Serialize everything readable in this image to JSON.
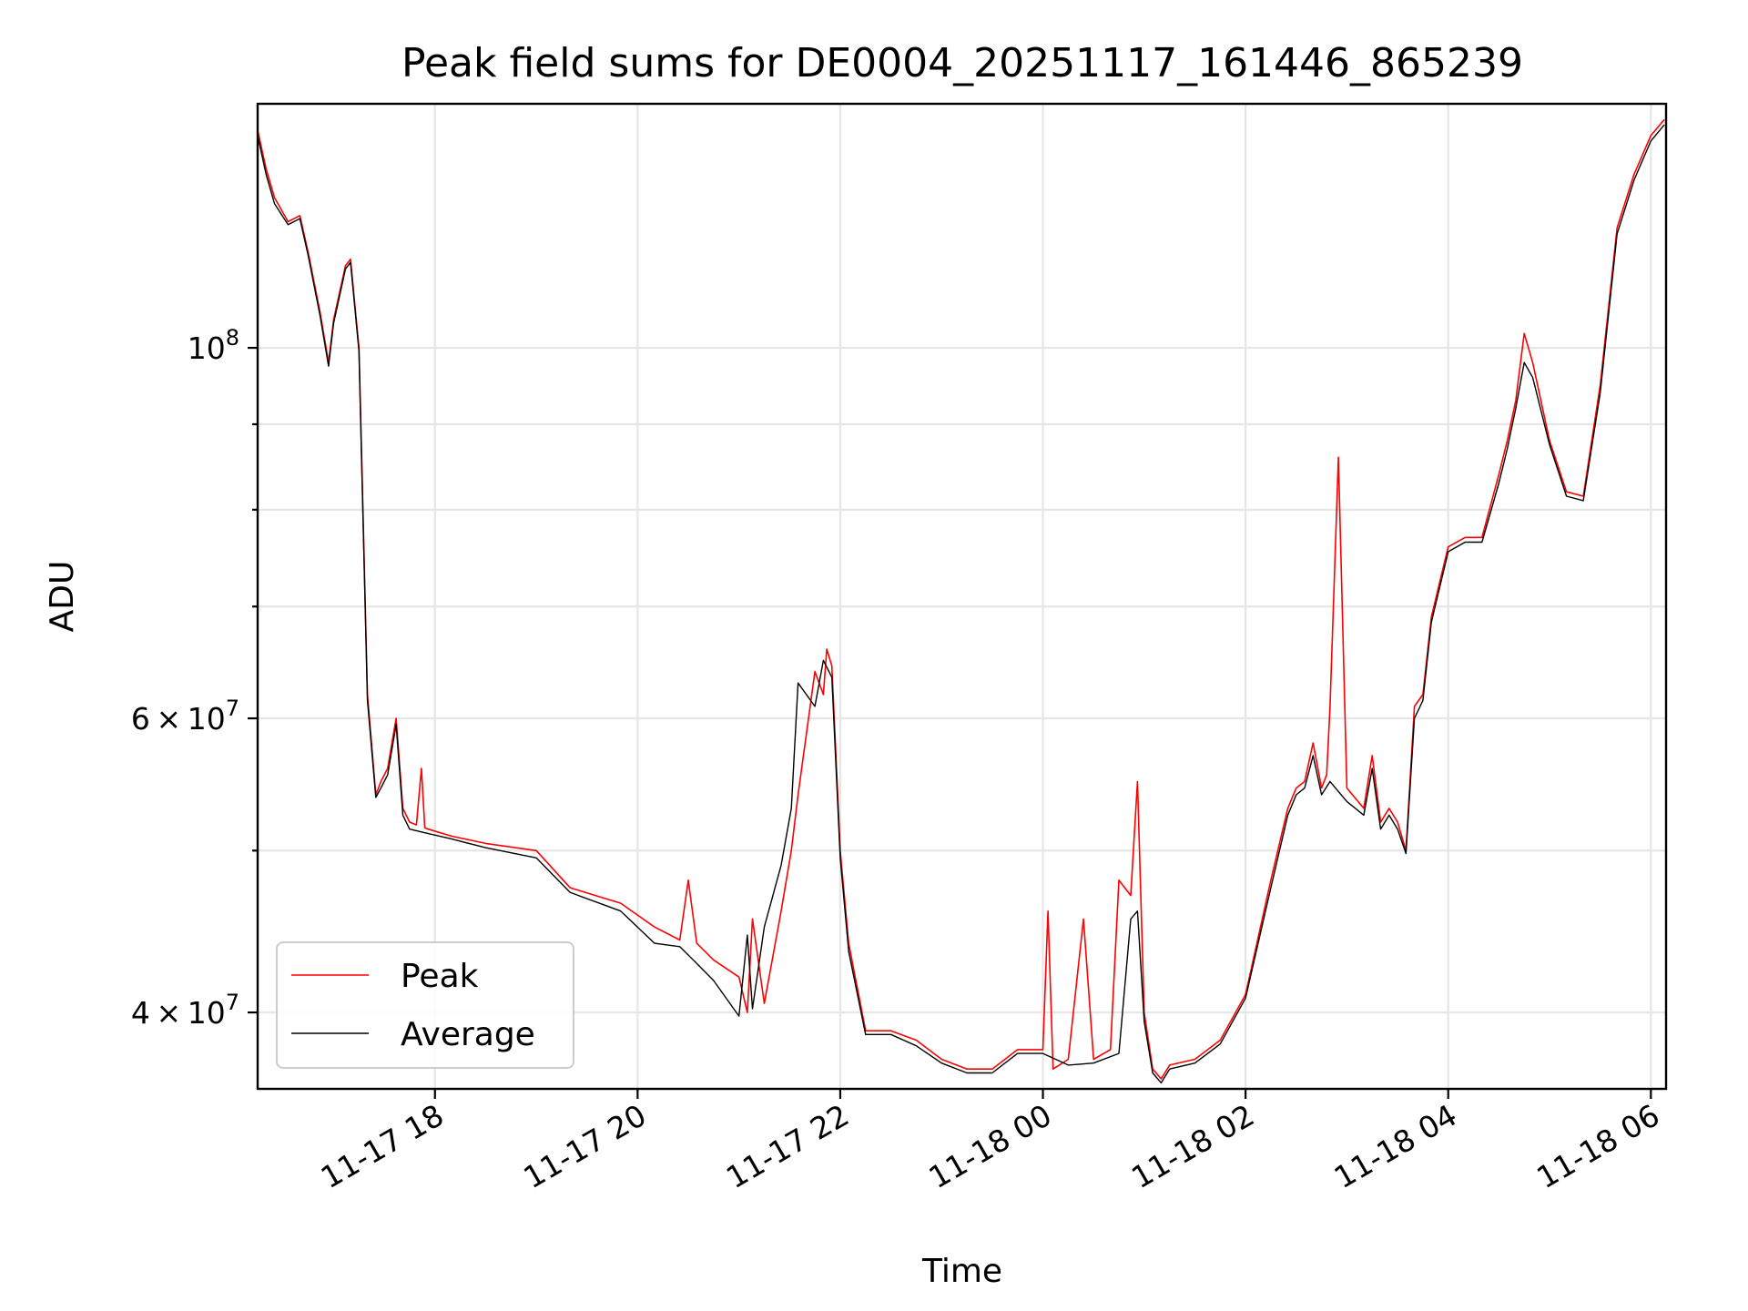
{
  "chart_data": {
    "type": "line",
    "title": "Peak field sums for DE0004_20251117_161446_865239",
    "xlabel": "Time",
    "ylabel": "ADU",
    "yscale": "log",
    "grid": true,
    "legend_position": "lower-left",
    "xlim": [
      "2025-11-17 16:15",
      "2025-11-18 06:09"
    ],
    "ylim": [
      36000000,
      140000000
    ],
    "x_ticks": [
      {
        "t": "2025-11-17 18:00",
        "label": "11-17 18"
      },
      {
        "t": "2025-11-17 20:00",
        "label": "11-17 20"
      },
      {
        "t": "2025-11-17 22:00",
        "label": "11-17 22"
      },
      {
        "t": "2025-11-18 00:00",
        "label": "11-18 00"
      },
      {
        "t": "2025-11-18 02:00",
        "label": "11-18 02"
      },
      {
        "t": "2025-11-18 04:00",
        "label": "11-18 04"
      },
      {
        "t": "2025-11-18 06:00",
        "label": "11-18 06"
      }
    ],
    "y_ticks_major": [
      {
        "value": 40000000,
        "label": "4 × 10^7",
        "mantissa": "4",
        "base": "10",
        "exp": "7"
      },
      {
        "value": 60000000,
        "label": "6 × 10^7",
        "mantissa": "6",
        "base": "10",
        "exp": "7"
      },
      {
        "value": 100000000,
        "label": "10^8",
        "mantissa": "",
        "base": "10",
        "exp": "8"
      }
    ],
    "y_ticks_minor": [
      50000000,
      70000000,
      80000000,
      90000000
    ],
    "series": [
      {
        "name": "Peak",
        "color": "#ff0000",
        "x": [
          "2025-11-17 16:15",
          "2025-11-17 16:20",
          "2025-11-17 16:25",
          "2025-11-17 16:33",
          "2025-11-17 16:40",
          "2025-11-17 16:45",
          "2025-11-17 16:52",
          "2025-11-17 16:57",
          "2025-11-17 17:00",
          "2025-11-17 17:07",
          "2025-11-17 17:10",
          "2025-11-17 17:15",
          "2025-11-17 17:20",
          "2025-11-17 17:25",
          "2025-11-17 17:28",
          "2025-11-17 17:32",
          "2025-11-17 17:37",
          "2025-11-17 17:41",
          "2025-11-17 17:45",
          "2025-11-17 17:49",
          "2025-11-17 17:52",
          "2025-11-17 17:54",
          "2025-11-17 17:56",
          "2025-11-17 18:10",
          "2025-11-17 18:30",
          "2025-11-17 19:00",
          "2025-11-17 19:20",
          "2025-11-17 19:50",
          "2025-11-17 20:10",
          "2025-11-17 20:25",
          "2025-11-17 20:30",
          "2025-11-17 20:35",
          "2025-11-17 20:45",
          "2025-11-17 21:00",
          "2025-11-17 21:05",
          "2025-11-17 21:08",
          "2025-11-17 21:15",
          "2025-11-17 21:25",
          "2025-11-17 21:31",
          "2025-11-17 21:35",
          "2025-11-17 21:45",
          "2025-11-17 21:50",
          "2025-11-17 21:52",
          "2025-11-17 21:55",
          "2025-11-17 22:00",
          "2025-11-17 22:05",
          "2025-11-17 22:15",
          "2025-11-17 22:30",
          "2025-11-17 22:45",
          "2025-11-17 23:00",
          "2025-11-17 23:15",
          "2025-11-17 23:30",
          "2025-11-17 23:45",
          "2025-11-18 00:00",
          "2025-11-18 00:03",
          "2025-11-18 00:06",
          "2025-11-18 00:15",
          "2025-11-18 00:24",
          "2025-11-18 00:30",
          "2025-11-18 00:40",
          "2025-11-18 00:45",
          "2025-11-18 00:52",
          "2025-11-18 00:56",
          "2025-11-18 01:00",
          "2025-11-18 01:05",
          "2025-11-18 01:10",
          "2025-11-18 01:15",
          "2025-11-18 01:30",
          "2025-11-18 01:45",
          "2025-11-18 02:00",
          "2025-11-18 02:15",
          "2025-11-18 02:25",
          "2025-11-18 02:30",
          "2025-11-18 02:35",
          "2025-11-18 02:40",
          "2025-11-18 02:45",
          "2025-11-18 02:48",
          "2025-11-18 02:50",
          "2025-11-18 02:55",
          "2025-11-18 03:00",
          "2025-11-18 03:10",
          "2025-11-18 03:15",
          "2025-11-18 03:20",
          "2025-11-18 03:25",
          "2025-11-18 03:30",
          "2025-11-18 03:35",
          "2025-11-18 03:40",
          "2025-11-18 03:45",
          "2025-11-18 03:50",
          "2025-11-18 04:00",
          "2025-11-18 04:10",
          "2025-11-18 04:20",
          "2025-11-18 04:30",
          "2025-11-18 04:35",
          "2025-11-18 04:40",
          "2025-11-18 04:45",
          "2025-11-18 04:50",
          "2025-11-18 05:00",
          "2025-11-18 05:10",
          "2025-11-18 05:20",
          "2025-11-18 05:30",
          "2025-11-18 05:40",
          "2025-11-18 05:50",
          "2025-11-18 06:00",
          "2025-11-18 06:08"
        ],
        "y": [
          135000000,
          128000000,
          123000000,
          119000000,
          120000000,
          114000000,
          105000000,
          98000000,
          104000000,
          112000000,
          113000000,
          100000000,
          62000000,
          54000000,
          55000000,
          56000000,
          60000000,
          53000000,
          52000000,
          51800000,
          56000000,
          51600000,
          51500000,
          51000000,
          50500000,
          50000000,
          47500000,
          46500000,
          45000000,
          44200000,
          48000000,
          44000000,
          43000000,
          42000000,
          40000000,
          45500000,
          40500000,
          46000000,
          50000000,
          54000000,
          64000000,
          62000000,
          66000000,
          64500000,
          50000000,
          44000000,
          39000000,
          39000000,
          38500000,
          37500000,
          37000000,
          37000000,
          38000000,
          38000000,
          46000000,
          37000000,
          37500000,
          45500000,
          37500000,
          38000000,
          48000000,
          47000000,
          55000000,
          40000000,
          37000000,
          36500000,
          37200000,
          37500000,
          38500000,
          41000000,
          48000000,
          53000000,
          54500000,
          55000000,
          58000000,
          54500000,
          55500000,
          61000000,
          86000000,
          54500000,
          53000000,
          57000000,
          52000000,
          53000000,
          52000000,
          50000000,
          61000000,
          62000000,
          69000000,
          76000000,
          77000000,
          77000000,
          84000000,
          88000000,
          93000000,
          102000000,
          98000000,
          88000000,
          82000000,
          81500000,
          95000000,
          118000000,
          127000000,
          134000000,
          137000000
        ]
      },
      {
        "name": "Average",
        "color": "#000000",
        "x": [
          "2025-11-17 16:15",
          "2025-11-17 16:20",
          "2025-11-17 16:25",
          "2025-11-17 16:33",
          "2025-11-17 16:40",
          "2025-11-17 16:45",
          "2025-11-17 16:52",
          "2025-11-17 16:57",
          "2025-11-17 17:00",
          "2025-11-17 17:07",
          "2025-11-17 17:10",
          "2025-11-17 17:15",
          "2025-11-17 17:20",
          "2025-11-17 17:25",
          "2025-11-17 17:28",
          "2025-11-17 17:32",
          "2025-11-17 17:37",
          "2025-11-17 17:41",
          "2025-11-17 17:45",
          "2025-11-17 17:52",
          "2025-11-17 18:10",
          "2025-11-17 18:30",
          "2025-11-17 19:00",
          "2025-11-17 19:20",
          "2025-11-17 19:50",
          "2025-11-17 20:10",
          "2025-11-17 20:25",
          "2025-11-17 20:35",
          "2025-11-17 20:45",
          "2025-11-17 21:00",
          "2025-11-17 21:05",
          "2025-11-17 21:08",
          "2025-11-17 21:15",
          "2025-11-17 21:25",
          "2025-11-17 21:31",
          "2025-11-17 21:35",
          "2025-11-17 21:45",
          "2025-11-17 21:50",
          "2025-11-17 21:55",
          "2025-11-17 22:00",
          "2025-11-17 22:05",
          "2025-11-17 22:15",
          "2025-11-17 22:30",
          "2025-11-17 22:45",
          "2025-11-17 23:00",
          "2025-11-17 23:15",
          "2025-11-17 23:30",
          "2025-11-17 23:45",
          "2025-11-18 00:00",
          "2025-11-18 00:15",
          "2025-11-18 00:30",
          "2025-11-18 00:45",
          "2025-11-18 00:52",
          "2025-11-18 00:56",
          "2025-11-18 01:00",
          "2025-11-18 01:05",
          "2025-11-18 01:10",
          "2025-11-18 01:15",
          "2025-11-18 01:30",
          "2025-11-18 01:45",
          "2025-11-18 02:00",
          "2025-11-18 02:15",
          "2025-11-18 02:25",
          "2025-11-18 02:30",
          "2025-11-18 02:35",
          "2025-11-18 02:40",
          "2025-11-18 02:45",
          "2025-11-18 02:50",
          "2025-11-18 03:00",
          "2025-11-18 03:10",
          "2025-11-18 03:15",
          "2025-11-18 03:20",
          "2025-11-18 03:25",
          "2025-11-18 03:30",
          "2025-11-18 03:35",
          "2025-11-18 03:40",
          "2025-11-18 03:45",
          "2025-11-18 03:50",
          "2025-11-18 04:00",
          "2025-11-18 04:10",
          "2025-11-18 04:20",
          "2025-11-18 04:30",
          "2025-11-18 04:35",
          "2025-11-18 04:40",
          "2025-11-18 04:45",
          "2025-11-18 04:50",
          "2025-11-18 05:00",
          "2025-11-18 05:10",
          "2025-11-18 05:20",
          "2025-11-18 05:30",
          "2025-11-18 05:40",
          "2025-11-18 05:50",
          "2025-11-18 06:00",
          "2025-11-18 06:08"
        ],
        "y": [
          134000000,
          127000000,
          122000000,
          118500000,
          119500000,
          113500000,
          104500000,
          97500000,
          103500000,
          111500000,
          112500000,
          99500000,
          61500000,
          53800000,
          54500000,
          55500000,
          59500000,
          52500000,
          51500000,
          51300000,
          50800000,
          50200000,
          49500000,
          47200000,
          46000000,
          44000000,
          43800000,
          42800000,
          41800000,
          39800000,
          44500000,
          40200000,
          45000000,
          49000000,
          53000000,
          63000000,
          61000000,
          65000000,
          63500000,
          49500000,
          43500000,
          38800000,
          38800000,
          38200000,
          37300000,
          36800000,
          36800000,
          37800000,
          37800000,
          37200000,
          37300000,
          37800000,
          45500000,
          46000000,
          39500000,
          36800000,
          36300000,
          37000000,
          37300000,
          38300000,
          40800000,
          47500000,
          52500000,
          54000000,
          54500000,
          57000000,
          54000000,
          55000000,
          53500000,
          52500000,
          56000000,
          51500000,
          52500000,
          51500000,
          49800000,
          60000000,
          61500000,
          68500000,
          75500000,
          76500000,
          76500000,
          83000000,
          87000000,
          92000000,
          98000000,
          96000000,
          87500000,
          81500000,
          81000000,
          94000000,
          117000000,
          126000000,
          133000000,
          136000000
        ]
      }
    ]
  }
}
